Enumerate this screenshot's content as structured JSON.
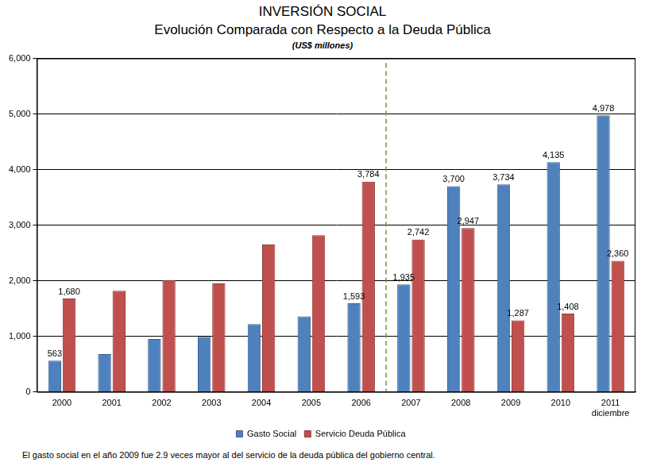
{
  "chart_data": {
    "type": "bar",
    "title": "INVERSIÓN SOCIAL",
    "subtitle": "Evolución Comparada con Respecto a la Deuda Pública",
    "units_note": "(US$ millones)",
    "footnote": "El gasto social en el año 2009 fue 2.9 veces mayor al del servicio de la deuda pública del gobierno central.",
    "categories": [
      "2000",
      "2001",
      "2002",
      "2003",
      "2004",
      "2005",
      "2006",
      "2007",
      "2008",
      "2009",
      "2010",
      [
        "2011",
        "diciembre"
      ]
    ],
    "series": [
      {
        "name": "Gasto Social",
        "color": "#4f81bd",
        "values": [
          563,
          680,
          950,
          990,
          1220,
          1360,
          1593,
          1935,
          3700,
          3734,
          4135,
          4978
        ],
        "value_labels": [
          "563",
          null,
          null,
          null,
          null,
          null,
          "1,593",
          "1,935",
          "3,700",
          "3,734",
          "4,135",
          "4,978"
        ]
      },
      {
        "name": "Servicio Deuda Pública",
        "color": "#c0504d",
        "values": [
          1680,
          1820,
          2010,
          1950,
          2650,
          2820,
          3784,
          2742,
          2947,
          1287,
          1408,
          2360
        ],
        "value_labels": [
          "1,680",
          null,
          null,
          null,
          null,
          null,
          "3,784",
          "2,742",
          "2,947",
          "1,287",
          "1,408",
          "2,360"
        ]
      }
    ],
    "ylim": [
      0,
      6000
    ],
    "yticks": [
      0,
      {
        "value": 1000,
        "label": "1,000"
      },
      {
        "value": 2000,
        "label": "2,000"
      },
      {
        "value": 3000,
        "label": "3,000"
      },
      {
        "value": 4000,
        "label": "4,000"
      },
      {
        "value": 5000,
        "label": "5,000"
      },
      {
        "value": 6000,
        "label": "6,000"
      }
    ],
    "grid": true,
    "legend": "bottom",
    "data_labels": true,
    "vlines": [
      {
        "between": [
          "2006",
          "2007"
        ],
        "line_style": "dashed",
        "color": "#76923c"
      }
    ]
  }
}
